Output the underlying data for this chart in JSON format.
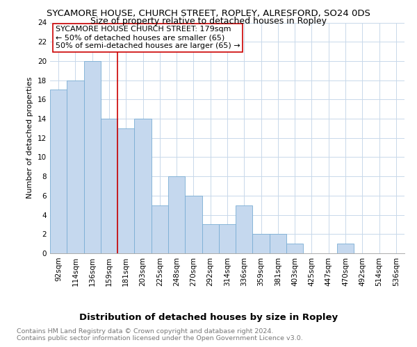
{
  "title": "SYCAMORE HOUSE, CHURCH STREET, ROPLEY, ALRESFORD, SO24 0DS",
  "subtitle": "Size of property relative to detached houses in Ropley",
  "xlabel": "Distribution of detached houses by size in Ropley",
  "ylabel": "Number of detached properties",
  "bar_color": "#c5d8ee",
  "bar_edge_color": "#7aadd4",
  "grid_color": "#c8d8ea",
  "background_color": "#ffffff",
  "categories": [
    "92sqm",
    "114sqm",
    "136sqm",
    "159sqm",
    "181sqm",
    "203sqm",
    "225sqm",
    "248sqm",
    "270sqm",
    "292sqm",
    "314sqm",
    "336sqm",
    "359sqm",
    "381sqm",
    "403sqm",
    "425sqm",
    "447sqm",
    "470sqm",
    "492sqm",
    "514sqm",
    "536sqm"
  ],
  "values": [
    17,
    18,
    20,
    14,
    13,
    14,
    5,
    8,
    6,
    3,
    3,
    5,
    2,
    2,
    1,
    0,
    0,
    1,
    0,
    0,
    0
  ],
  "vline_x_index": 4,
  "vline_color": "#cc0000",
  "annotation_line1": "SYCAMORE HOUSE CHURCH STREET: 179sqm",
  "annotation_line2": "← 50% of detached houses are smaller (65)",
  "annotation_line3": "50% of semi-detached houses are larger (65) →",
  "ylim": [
    0,
    24
  ],
  "yticks": [
    0,
    2,
    4,
    6,
    8,
    10,
    12,
    14,
    16,
    18,
    20,
    22,
    24
  ],
  "footnote": "Contains HM Land Registry data © Crown copyright and database right 2024.\nContains public sector information licensed under the Open Government Licence v3.0.",
  "title_fontsize": 9.5,
  "subtitle_fontsize": 9,
  "xlabel_fontsize": 9.5,
  "ylabel_fontsize": 8,
  "tick_fontsize": 7.5,
  "annotation_fontsize": 8,
  "footnote_fontsize": 6.8
}
